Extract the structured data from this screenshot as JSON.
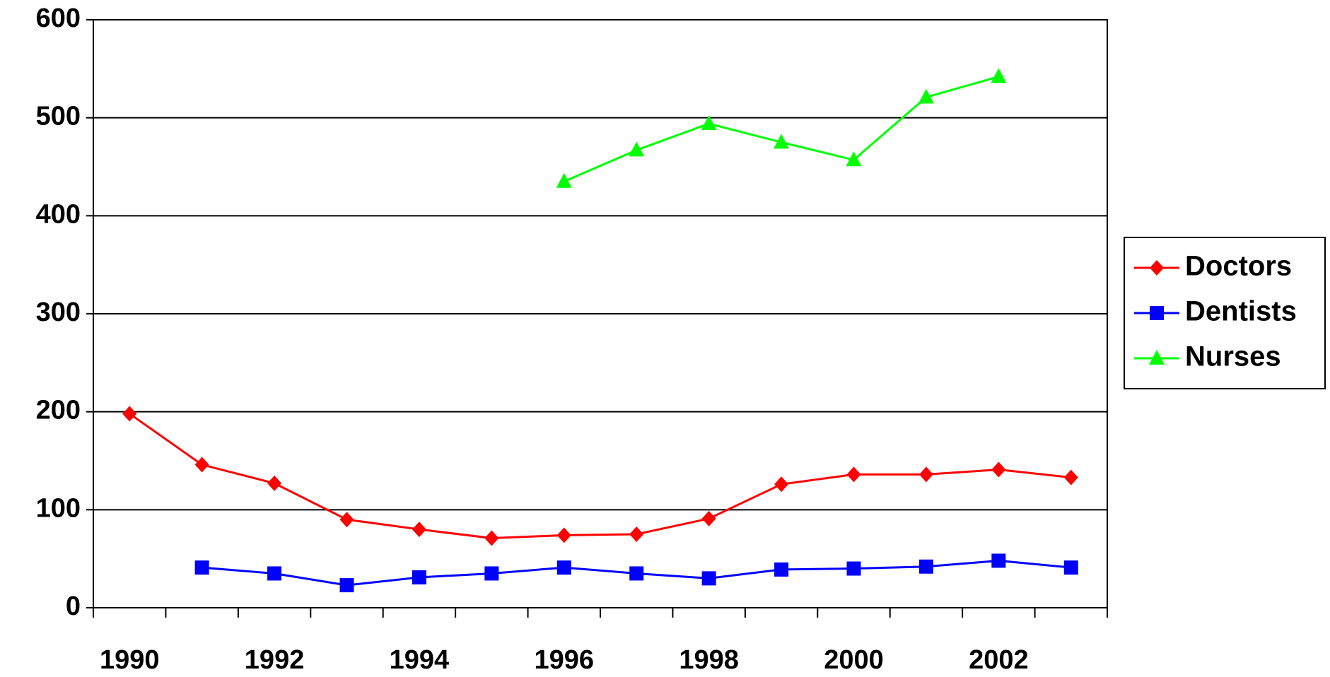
{
  "chart_data": {
    "type": "line",
    "categories": [
      "1990",
      null,
      "1992",
      null,
      "1994",
      null,
      "1996",
      null,
      "1998",
      null,
      "2000",
      null,
      "2002",
      null
    ],
    "series": [
      {
        "name": "Doctors",
        "color": "#ff0000",
        "marker": "diamond",
        "values": [
          198,
          146,
          127,
          90,
          80,
          71,
          74,
          75,
          91,
          126,
          136,
          136,
          141,
          133
        ]
      },
      {
        "name": "Dentists",
        "color": "#0000ff",
        "marker": "square",
        "values": [
          null,
          41,
          35,
          23,
          31,
          35,
          41,
          35,
          30,
          39,
          40,
          42,
          48,
          41
        ]
      },
      {
        "name": "Nurses",
        "color": "#00ff00",
        "marker": "triangle",
        "values": [
          null,
          null,
          null,
          null,
          null,
          null,
          435,
          467,
          494,
          475,
          457,
          521,
          542,
          null
        ]
      }
    ],
    "ylim": [
      0,
      600
    ],
    "yticks": [
      0,
      100,
      200,
      300,
      400,
      500,
      600
    ],
    "grid": true,
    "legend": "right"
  }
}
